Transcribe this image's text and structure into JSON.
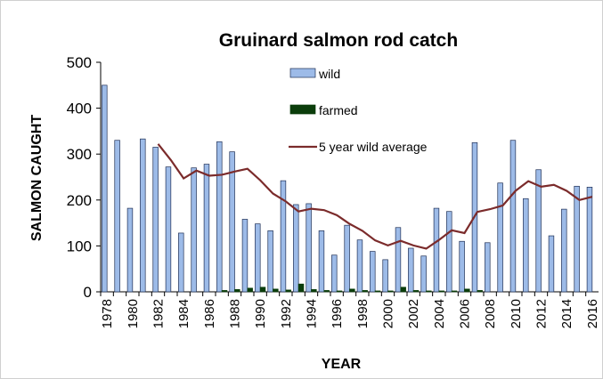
{
  "chart_data": {
    "type": "bar",
    "title": "Gruinard salmon  rod catch",
    "xlabel": "YEAR",
    "ylabel": "SALMON CAUGHT",
    "categories": [
      "1978",
      null,
      "1980",
      null,
      "1982",
      null,
      "1984",
      null,
      "1986",
      null,
      "1988",
      null,
      "1990",
      null,
      "1992",
      null,
      "1994",
      null,
      "1996",
      null,
      "1998",
      null,
      "2000",
      null,
      "2002",
      null,
      "2004",
      null,
      "2006",
      null,
      "2008",
      null,
      "2010",
      null,
      "2012",
      null,
      "2014",
      null,
      "2016"
    ],
    "series": [
      {
        "name": "wild",
        "color": "#9dbbe8",
        "kind": "bar",
        "values": [
          450,
          330,
          182,
          333,
          315,
          272,
          128,
          270,
          278,
          327,
          305,
          158,
          148,
          133,
          242,
          190,
          192,
          133,
          80,
          145,
          113,
          88,
          70,
          140,
          95,
          78,
          182,
          175,
          110,
          325,
          107,
          237,
          330,
          203,
          266,
          122,
          180,
          230,
          228
        ]
      },
      {
        "name": "farmed",
        "color": "#0b3d0b",
        "kind": "bar",
        "values": [
          0,
          0,
          0,
          0,
          0,
          0,
          0,
          0,
          0,
          3,
          5,
          8,
          10,
          6,
          4,
          17,
          5,
          3,
          2,
          6,
          3,
          2,
          2,
          10,
          3,
          2,
          2,
          2,
          6,
          3,
          0,
          0,
          0,
          0,
          0,
          0,
          0,
          0,
          0
        ]
      },
      {
        "name": "5 year wild average",
        "color": "#7b2b2b",
        "kind": "line",
        "values": [
          null,
          null,
          null,
          null,
          322,
          287,
          247,
          264,
          253,
          255,
          262,
          268,
          243,
          214,
          197,
          175,
          181,
          178,
          167,
          148,
          133,
          112,
          101,
          111,
          101,
          94,
          113,
          134,
          128,
          174,
          180,
          188,
          220,
          241,
          229,
          233,
          220,
          200,
          207
        ]
      }
    ],
    "ylim": [
      0,
      500
    ],
    "yticks": [
      0,
      100,
      200,
      300,
      400,
      500
    ],
    "grid": false
  }
}
